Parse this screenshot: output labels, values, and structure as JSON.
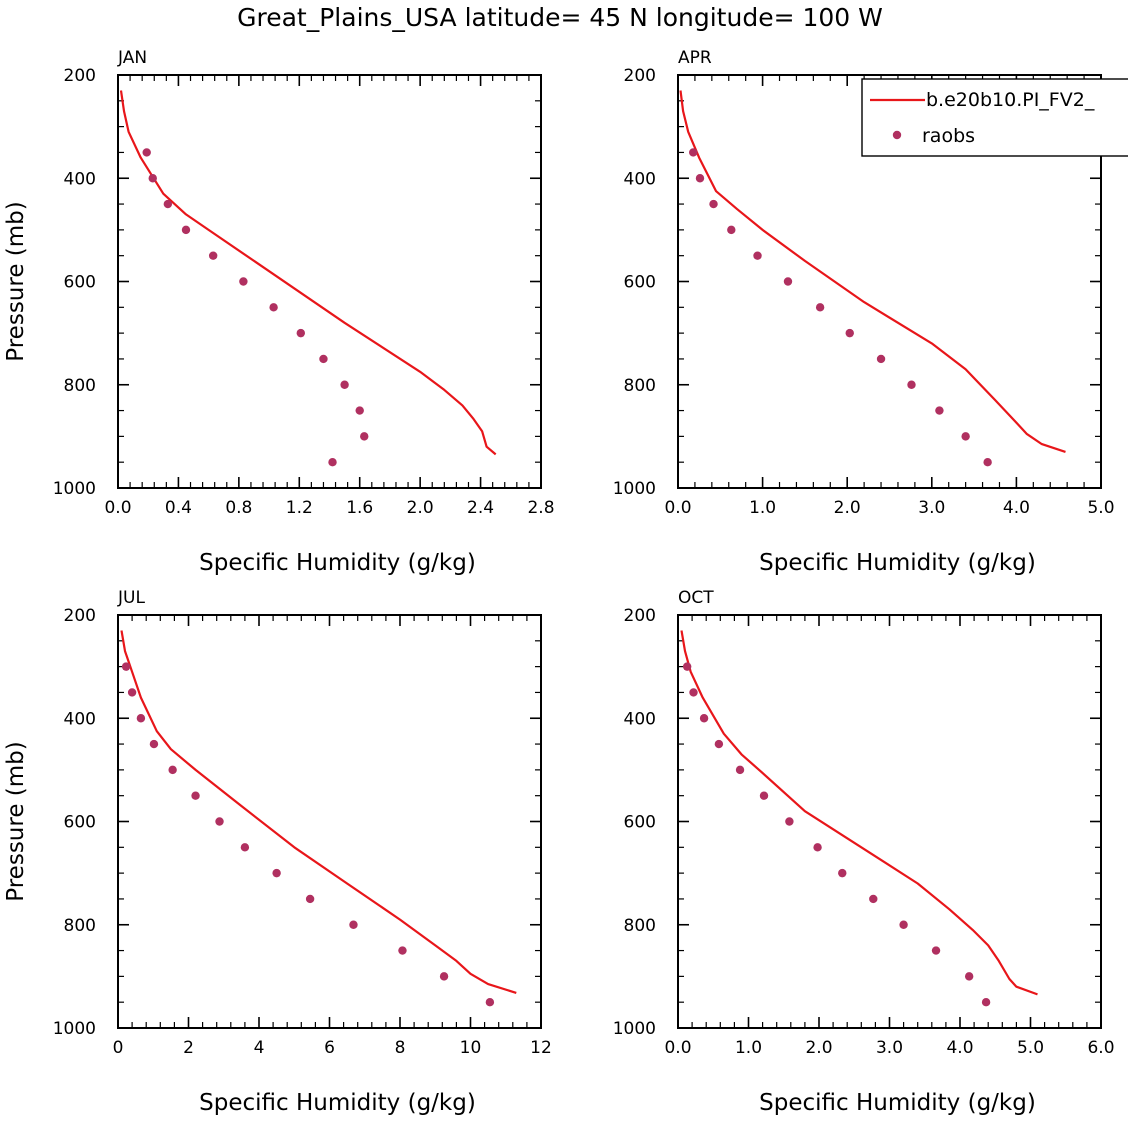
{
  "title": "Great_Plains_USA  latitude= 45 N longitude= 100 W",
  "colors": {
    "model": "#e8161a",
    "raobs": "#b03060",
    "axis": "#000000"
  },
  "legend": {
    "entries": [
      {
        "label": "b.e20b10.PI_FV2_",
        "style": "line",
        "color": "#e8161a"
      },
      {
        "label": "raobs",
        "style": "dot",
        "color": "#b03060"
      }
    ],
    "placement": "top-right of APR panel"
  },
  "chart_data": [
    {
      "type": "line",
      "panel_label": "JAN",
      "xlabel": "Specific Humidity (g/kg)",
      "ylabel": "Pressure (mb)",
      "xlim": [
        0,
        2.8
      ],
      "ylim": [
        1000,
        200
      ],
      "xticks": [
        "0.0",
        "0.4",
        "0.8",
        "1.2",
        "1.6",
        "2.0",
        "2.4",
        "2.8"
      ],
      "yticks": [
        "200",
        "400",
        "600",
        "800",
        "1000"
      ],
      "grid": false,
      "series": [
        {
          "name": "b.e20b10.PI_FV2_",
          "style": "line",
          "x": [
            0.02,
            0.04,
            0.07,
            0.15,
            0.3,
            0.45,
            0.6,
            1.0,
            1.5,
            2.0,
            2.16,
            2.28,
            2.35,
            2.41,
            2.44,
            2.5
          ],
          "y": [
            230,
            270,
            310,
            360,
            430,
            470,
            500,
            580,
            680,
            775,
            810,
            840,
            865,
            890,
            920,
            935
          ]
        },
        {
          "name": "raobs",
          "style": "dot",
          "x": [
            0.19,
            0.23,
            0.33,
            0.45,
            0.63,
            0.83,
            1.03,
            1.21,
            1.36,
            1.5,
            1.6,
            1.63,
            1.42
          ],
          "y": [
            350,
            400,
            450,
            500,
            550,
            600,
            650,
            700,
            750,
            800,
            850,
            900,
            950
          ]
        }
      ]
    },
    {
      "type": "line",
      "panel_label": "APR",
      "xlabel": "Specific Humidity (g/kg)",
      "ylabel": "",
      "xlim": [
        0,
        5.0
      ],
      "ylim": [
        1000,
        200
      ],
      "xticks": [
        "0.0",
        "1.0",
        "2.0",
        "3.0",
        "4.0",
        "5.0"
      ],
      "yticks": [
        "200",
        "400",
        "600",
        "800",
        "1000"
      ],
      "grid": false,
      "series": [
        {
          "name": "b.e20b10.PI_FV2_",
          "style": "line",
          "x": [
            0.03,
            0.06,
            0.12,
            0.25,
            0.45,
            0.7,
            1.0,
            1.5,
            2.2,
            3.0,
            3.4,
            3.75,
            3.98,
            4.12,
            4.3,
            4.58
          ],
          "y": [
            230,
            270,
            310,
            360,
            425,
            460,
            500,
            560,
            640,
            720,
            770,
            830,
            870,
            895,
            915,
            930
          ]
        },
        {
          "name": "raobs",
          "style": "dot",
          "x": [
            0.18,
            0.26,
            0.42,
            0.63,
            0.94,
            1.3,
            1.68,
            2.03,
            2.4,
            2.76,
            3.09,
            3.4,
            3.66
          ],
          "y": [
            350,
            400,
            450,
            500,
            550,
            600,
            650,
            700,
            750,
            800,
            850,
            900,
            950
          ]
        }
      ]
    },
    {
      "type": "line",
      "panel_label": "JUL",
      "xlabel": "Specific Humidity (g/kg)",
      "ylabel": "Pressure (mb)",
      "xlim": [
        0,
        12
      ],
      "ylim": [
        1000,
        200
      ],
      "xticks": [
        "0",
        "2",
        "4",
        "6",
        "8",
        "10",
        "12"
      ],
      "yticks": [
        "200",
        "400",
        "600",
        "800",
        "1000"
      ],
      "grid": false,
      "series": [
        {
          "name": "b.e20b10.PI_FV2_",
          "style": "line",
          "x": [
            0.1,
            0.2,
            0.4,
            0.65,
            1.1,
            1.5,
            2.2,
            3.5,
            5.0,
            6.5,
            8.0,
            9.0,
            9.6,
            10.0,
            10.5,
            11.3
          ],
          "y": [
            230,
            270,
            310,
            360,
            425,
            460,
            500,
            570,
            650,
            720,
            790,
            840,
            870,
            895,
            915,
            932
          ]
        },
        {
          "name": "raobs",
          "style": "dot",
          "x": [
            0.23,
            0.4,
            0.65,
            1.02,
            1.55,
            2.2,
            2.88,
            3.6,
            4.5,
            5.45,
            6.68,
            8.07,
            9.25,
            10.55
          ],
          "y": [
            300,
            350,
            400,
            450,
            500,
            550,
            600,
            650,
            700,
            750,
            800,
            850,
            900,
            950
          ]
        }
      ]
    },
    {
      "type": "line",
      "panel_label": "OCT",
      "xlabel": "Specific Humidity (g/kg)",
      "ylabel": "",
      "xlim": [
        0,
        6.0
      ],
      "ylim": [
        1000,
        200
      ],
      "xticks": [
        "0.0",
        "1.0",
        "2.0",
        "3.0",
        "4.0",
        "5.0",
        "6.0"
      ],
      "yticks": [
        "200",
        "400",
        "600",
        "800",
        "1000"
      ],
      "grid": false,
      "series": [
        {
          "name": "b.e20b10.PI_FV2_",
          "style": "line",
          "x": [
            0.05,
            0.1,
            0.18,
            0.35,
            0.65,
            0.9,
            1.15,
            1.8,
            2.6,
            3.4,
            3.85,
            4.18,
            4.4,
            4.55,
            4.7,
            4.8,
            5.1
          ],
          "y": [
            230,
            270,
            310,
            360,
            430,
            470,
            500,
            580,
            650,
            720,
            770,
            810,
            840,
            870,
            905,
            920,
            935
          ]
        },
        {
          "name": "raobs",
          "style": "dot",
          "x": [
            0.13,
            0.22,
            0.37,
            0.58,
            0.88,
            1.22,
            1.58,
            1.98,
            2.33,
            2.77,
            3.2,
            3.66,
            4.13,
            4.37
          ],
          "y": [
            300,
            350,
            400,
            450,
            500,
            550,
            600,
            650,
            700,
            750,
            800,
            850,
            900,
            950
          ]
        }
      ]
    }
  ]
}
